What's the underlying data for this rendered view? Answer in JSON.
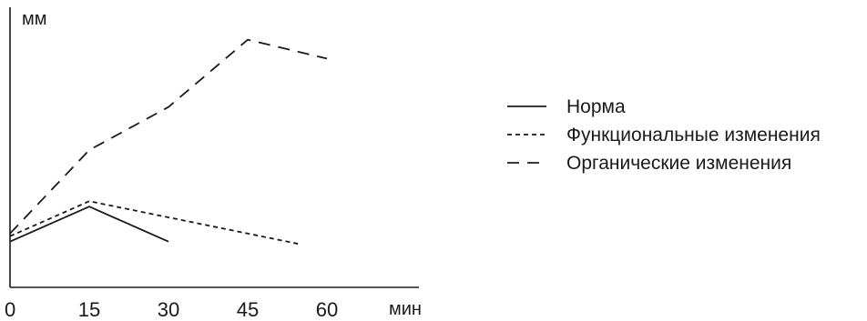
{
  "chart_data": {
    "type": "line",
    "ylabel": "мм",
    "xlabel": "мин",
    "x_ticks": [
      0,
      15,
      30,
      45,
      60
    ],
    "xlim": [
      0,
      75
    ],
    "ylim": [
      0,
      100
    ],
    "grid": false,
    "legend_position": "right",
    "series": [
      {
        "name": "Норма",
        "style": "solid",
        "points": [
          [
            0,
            17
          ],
          [
            15,
            30
          ],
          [
            30,
            17
          ]
        ]
      },
      {
        "name": "Функциональные изменения",
        "style": "dotted",
        "points": [
          [
            0,
            19
          ],
          [
            15,
            32
          ],
          [
            55,
            16
          ]
        ]
      },
      {
        "name": "Органические изменения",
        "style": "dashed",
        "points": [
          [
            0,
            20
          ],
          [
            15,
            51
          ],
          [
            30,
            67
          ],
          [
            45,
            92
          ],
          [
            60,
            85
          ]
        ]
      }
    ]
  }
}
